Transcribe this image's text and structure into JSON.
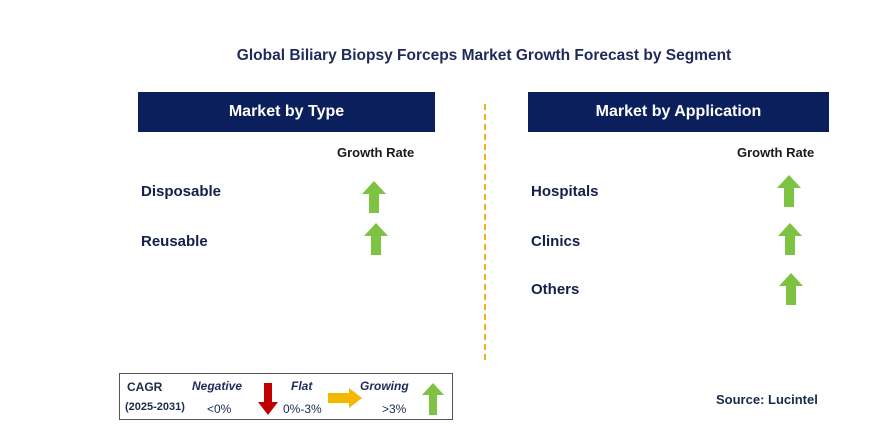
{
  "chart_data": {
    "type": "table",
    "title": "Global Biliary Biopsy Forceps Market Growth Forecast by Segment",
    "panels": [
      {
        "header": "Market by Type",
        "column_label": "Growth Rate",
        "rows": [
          {
            "label": "Disposable",
            "trend": "growing"
          },
          {
            "label": "Reusable",
            "trend": "growing"
          }
        ]
      },
      {
        "header": "Market by Application",
        "column_label": "Growth Rate",
        "rows": [
          {
            "label": "Hospitals",
            "trend": "growing"
          },
          {
            "label": "Clinics",
            "trend": "growing"
          },
          {
            "label": "Others",
            "trend": "growing"
          }
        ]
      }
    ]
  },
  "legend": {
    "cagr_label": "CAGR",
    "period": "(2025-2031)",
    "negative_label": "Negative",
    "negative_range": "<0%",
    "flat_label": "Flat",
    "flat_range": "0%-3%",
    "growing_label": "Growing",
    "growing_range": ">3%"
  },
  "source": "Source: Lucintel",
  "colors": {
    "header_bg": "#0b1f5c",
    "growing": "#7dc242",
    "negative": "#c00000",
    "flat": "#f5b800",
    "divider": "#f2b21b"
  },
  "icons": {
    "growing": "up-arrow-icon",
    "negative": "down-arrow-icon",
    "flat": "right-arrow-icon"
  }
}
